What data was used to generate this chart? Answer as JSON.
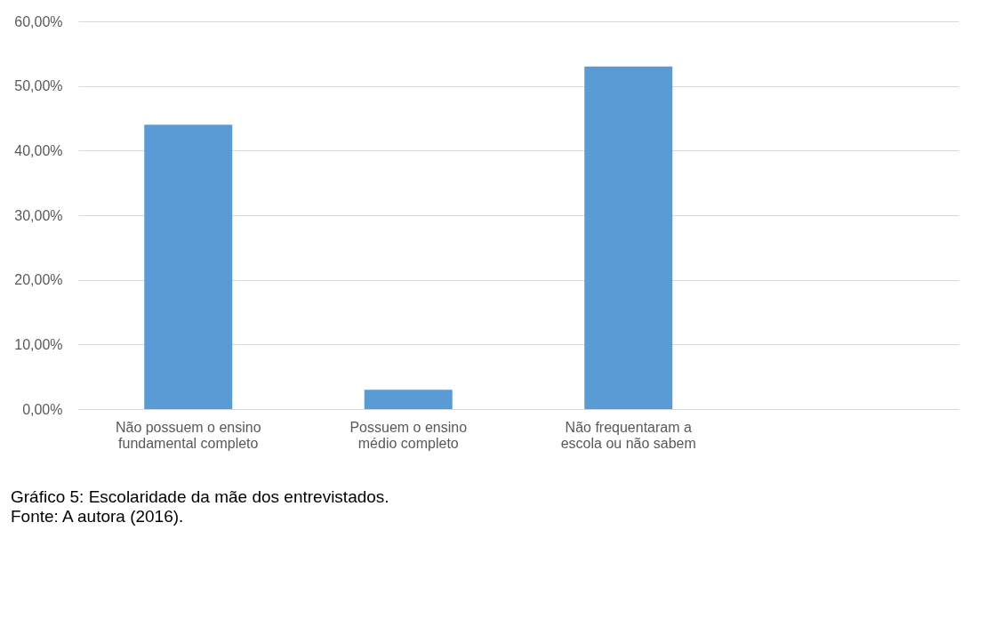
{
  "chart_data": {
    "type": "bar",
    "categories": [
      "Não possuem o ensino fundamental completo",
      "Possuem o ensino médio completo",
      "Não frequentaram a escola ou não sabem",
      null
    ],
    "values": [
      44,
      3,
      53,
      null
    ],
    "color": "#5b9bd5",
    "ylim": [
      0,
      60
    ],
    "yticks": [
      {
        "value": 0,
        "label": "0,00%"
      },
      {
        "value": 10,
        "label": "10,00%"
      },
      {
        "value": 20,
        "label": "20,00%"
      },
      {
        "value": 30,
        "label": "30,00%"
      },
      {
        "value": 40,
        "label": "40,00%"
      },
      {
        "value": 50,
        "label": "50,00%"
      },
      {
        "value": 60,
        "label": "60,00%"
      }
    ],
    "grid": "y",
    "annotations": [
      "Gráfico 5: Escolaridade da mãe dos entrevistados.",
      "Fonte: A autora (2016)."
    ]
  }
}
